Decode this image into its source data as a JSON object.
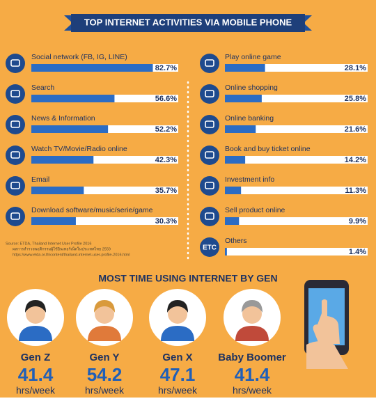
{
  "header": {
    "title": "TOP INTERNET ACTIVITIES VIA MOBILE PHONE"
  },
  "left": [
    {
      "label": "Social network (FB, IG, LINE)",
      "value": 82.7,
      "value_label": "82.7%"
    },
    {
      "label": "Search",
      "value": 56.6,
      "value_label": "56.6%"
    },
    {
      "label": "News & Information",
      "value": 52.2,
      "value_label": "52.2%"
    },
    {
      "label": "Watch TV/Movie/Radio online",
      "value": 42.3,
      "value_label": "42.3%"
    },
    {
      "label": "Email",
      "value": 35.7,
      "value_label": "35.7%"
    },
    {
      "label": "Download software/music/serie/game",
      "value": 30.3,
      "value_label": "30.3%"
    }
  ],
  "right": [
    {
      "label": "Play online game",
      "value": 28.1,
      "value_label": "28.1%"
    },
    {
      "label": "Online shopping",
      "value": 25.8,
      "value_label": "25.8%"
    },
    {
      "label": "Online banking",
      "value": 21.6,
      "value_label": "21.6%"
    },
    {
      "label": "Book and buy ticket online",
      "value": 14.2,
      "value_label": "14.2%"
    },
    {
      "label": "Investment info",
      "value": 11.3,
      "value_label": "11.3%"
    },
    {
      "label": "Sell product online",
      "value": 9.9,
      "value_label": "9.9%"
    },
    {
      "label": "Others",
      "value": 1.4,
      "value_label": "1.4%",
      "icon_text": "ETC"
    }
  ],
  "source": [
    "Source: ETDA, Thailand Internet User Profile 2016",
    "ผลการสำรวจพฤติกรรมผู้ใช้อินเทอร์เน็ตในประเทศไทย 2559",
    "https://www.etda.or.th/content/thailand-internet-user-profile-2016.html"
  ],
  "gen_section": {
    "title": "MOST TIME USING INTERNET BY GEN",
    "gens": [
      {
        "name": "Gen Z",
        "value": 41.4,
        "unit": "hrs/week"
      },
      {
        "name": "Gen Y",
        "value": 54.2,
        "unit": "hrs/week"
      },
      {
        "name": "Gen X",
        "value": 47.1,
        "unit": "hrs/week"
      },
      {
        "name": "Baby Boomer",
        "value": 41.4,
        "unit": "hrs/week"
      }
    ]
  }
}
